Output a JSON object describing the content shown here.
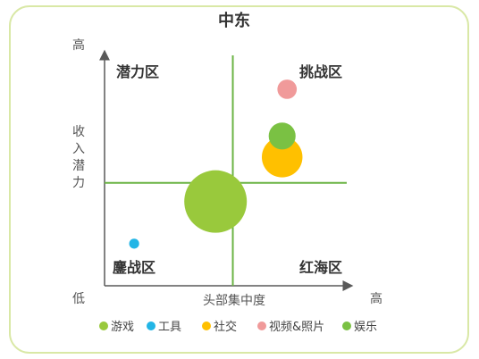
{
  "chart_data": {
    "type": "bubble",
    "title": "中东",
    "xlabel": "头部集中度",
    "ylabel": "收入潜力",
    "x_low": "",
    "x_high": "高",
    "y_low": "低",
    "y_high": "高",
    "xlim": [
      0,
      1
    ],
    "ylim": [
      0,
      1
    ],
    "quadrants": {
      "top_left": "潜力区",
      "top_right": "挑战区",
      "bottom_left": "鏖战区",
      "bottom_right": "红海区"
    },
    "divider": {
      "x": 0.52,
      "y": 0.44
    },
    "series": [
      {
        "name": "游戏",
        "color": "#99c93c",
        "x": 0.45,
        "y": 0.36,
        "size": 1.0
      },
      {
        "name": "工具",
        "color": "#22b5e6",
        "x": 0.12,
        "y": 0.18,
        "size": 0.16
      },
      {
        "name": "社交",
        "color": "#ffc000",
        "x": 0.72,
        "y": 0.55,
        "size": 0.65
      },
      {
        "name": "视频&照片",
        "color": "#f09a9a",
        "x": 0.74,
        "y": 0.84,
        "size": 0.31
      },
      {
        "name": "娱乐",
        "color": "#7ac143",
        "x": 0.72,
        "y": 0.64,
        "size": 0.43
      }
    ]
  }
}
